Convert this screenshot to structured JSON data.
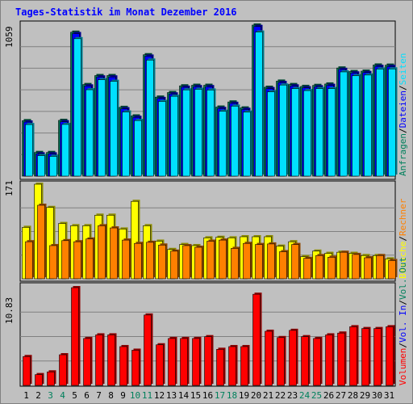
{
  "title": "Tages-Statistik im Monat Dezember 2016",
  "colors": {
    "frame_bg": "#C0C0C0",
    "title": "#0000FF",
    "anfragen": "#00805C",
    "dateien": "#0000FF",
    "seiten": "#00E0FF",
    "besuche": "#FFFF00",
    "rechner": "#FF8000",
    "volumen": "#FF0000",
    "vol_in": "#0000FF",
    "vol_out": "#00805C",
    "weekend_label": "#00805C",
    "weekday_label": "#000000"
  },
  "chart_data": [
    {
      "type": "bar",
      "panel": "top",
      "ylabel_max": "1059",
      "ymax": 1059,
      "categories": [
        "1",
        "2",
        "3",
        "4",
        "5",
        "6",
        "7",
        "8",
        "9",
        "10",
        "11",
        "12",
        "13",
        "14",
        "15",
        "16",
        "17",
        "18",
        "19",
        "20",
        "21",
        "22",
        "23",
        "24",
        "25",
        "26",
        "27",
        "28",
        "29",
        "30",
        "31"
      ],
      "weekend": [
        3,
        4,
        10,
        11,
        17,
        18,
        24,
        25
      ],
      "series": [
        {
          "name": "Anfragen",
          "values": [
            389,
            166,
            166,
            391,
            1009,
            642,
            705,
            705,
            482,
            422,
            851,
            554,
            586,
            633,
            637,
            637,
            484,
            520,
            478,
            1059,
            623,
            666,
            642,
            629,
            636,
            646,
            758,
            733,
            736,
            779,
            778
          ]
        },
        {
          "name": "Dateien",
          "values": [
            385,
            162,
            162,
            387,
            1005,
            638,
            701,
            701,
            478,
            418,
            847,
            550,
            582,
            629,
            633,
            633,
            480,
            516,
            474,
            1055,
            619,
            662,
            638,
            625,
            632,
            642,
            754,
            729,
            732,
            775,
            774
          ]
        },
        {
          "name": "Seiten",
          "values": [
            373,
            155,
            150,
            374,
            975,
            617,
            687,
            676,
            461,
            401,
            825,
            535,
            571,
            616,
            620,
            615,
            466,
            502,
            460,
            1021,
            602,
            650,
            625,
            611,
            625,
            625,
            742,
            715,
            720,
            762,
            763
          ]
        }
      ],
      "legend": [
        "Anfragen",
        "/",
        "Dateien",
        "/",
        "Seiten"
      ]
    },
    {
      "type": "bar",
      "panel": "middle",
      "ylabel_max": "171",
      "ymax": 171,
      "categories": [
        "1",
        "2",
        "3",
        "4",
        "5",
        "6",
        "7",
        "8",
        "9",
        "10",
        "11",
        "12",
        "13",
        "14",
        "15",
        "16",
        "17",
        "18",
        "19",
        "20",
        "21",
        "22",
        "23",
        "24",
        "25",
        "26",
        "27",
        "28",
        "29",
        "30",
        "31"
      ],
      "series": [
        {
          "name": "Besuche",
          "values": [
            93,
            171,
            129,
            100,
            96,
            96,
            115,
            115,
            90,
            140,
            96,
            68,
            53,
            62,
            60,
            74,
            75,
            74,
            76,
            76,
            76,
            59,
            67,
            40,
            50,
            46,
            48,
            46,
            42,
            42,
            36
          ]
        },
        {
          "name": "Rechner",
          "values": [
            67,
            133,
            60,
            69,
            67,
            72,
            96,
            92,
            70,
            64,
            66,
            61,
            50,
            60,
            57,
            68,
            70,
            55,
            64,
            62,
            63,
            49,
            62,
            37,
            42,
            39,
            48,
            44,
            38,
            42,
            33
          ]
        }
      ],
      "legend": [
        "Besuche",
        "/",
        "Rechner"
      ]
    },
    {
      "type": "bar",
      "panel": "bottom",
      "ylabel_max": "10.83",
      "ymax": 10.83,
      "categories": [
        "1",
        "2",
        "3",
        "4",
        "5",
        "6",
        "7",
        "8",
        "9",
        "10",
        "11",
        "12",
        "13",
        "14",
        "15",
        "16",
        "17",
        "18",
        "19",
        "20",
        "21",
        "22",
        "23",
        "24",
        "25",
        "26",
        "27",
        "28",
        "29",
        "30",
        "31"
      ],
      "series": [
        {
          "name": "Volumen",
          "values": [
            3.2,
            1.2,
            1.5,
            3.4,
            10.83,
            5.2,
            5.6,
            5.6,
            4.3,
            3.9,
            7.8,
            4.5,
            5.2,
            5.2,
            5.2,
            5.4,
            4.0,
            4.3,
            4.3,
            10.1,
            6.0,
            5.3,
            6.1,
            5.4,
            5.2,
            5.6,
            5.8,
            6.5,
            6.3,
            6.3,
            6.5
          ]
        }
      ],
      "legend": [
        "Volumen",
        "/",
        "Vol. In",
        "/",
        "Vol. Out"
      ]
    }
  ]
}
